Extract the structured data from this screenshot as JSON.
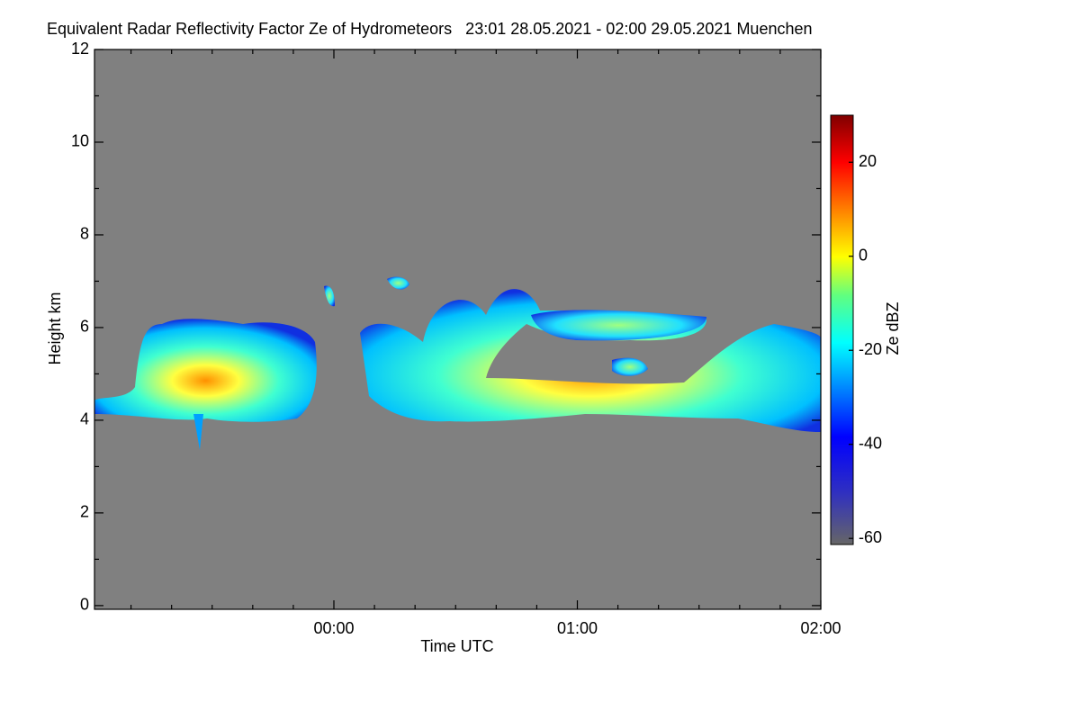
{
  "chart_data": {
    "type": "heatmap",
    "title": "Equivalent Radar Reflectivity Factor Ze of Hydrometeors   23:01 28.05.2021 - 02:00 29.05.2021 Muenchen",
    "xlabel": "Time UTC",
    "ylabel": "Height km",
    "colorbar_label": "Ze dBZ",
    "xlim": [
      -59,
      120
    ],
    "xticks": [
      {
        "value": 0,
        "label": "00:00"
      },
      {
        "value": 60,
        "label": "01:00"
      },
      {
        "value": 120,
        "label": "02:00"
      }
    ],
    "xminorticks": [
      -50,
      -40,
      -30,
      -20,
      -10,
      10,
      20,
      30,
      40,
      50,
      70,
      80,
      90,
      100,
      110
    ],
    "ylim": [
      -0.08,
      12.0
    ],
    "yticks": [
      0,
      2,
      4,
      6,
      8,
      10,
      12
    ],
    "yminorticks": [
      1,
      3,
      5,
      7,
      9,
      11
    ],
    "clim": [
      -61.3,
      30
    ],
    "cticks": [
      -60,
      -40,
      -20,
      0,
      20
    ],
    "background": "#808080"
  }
}
